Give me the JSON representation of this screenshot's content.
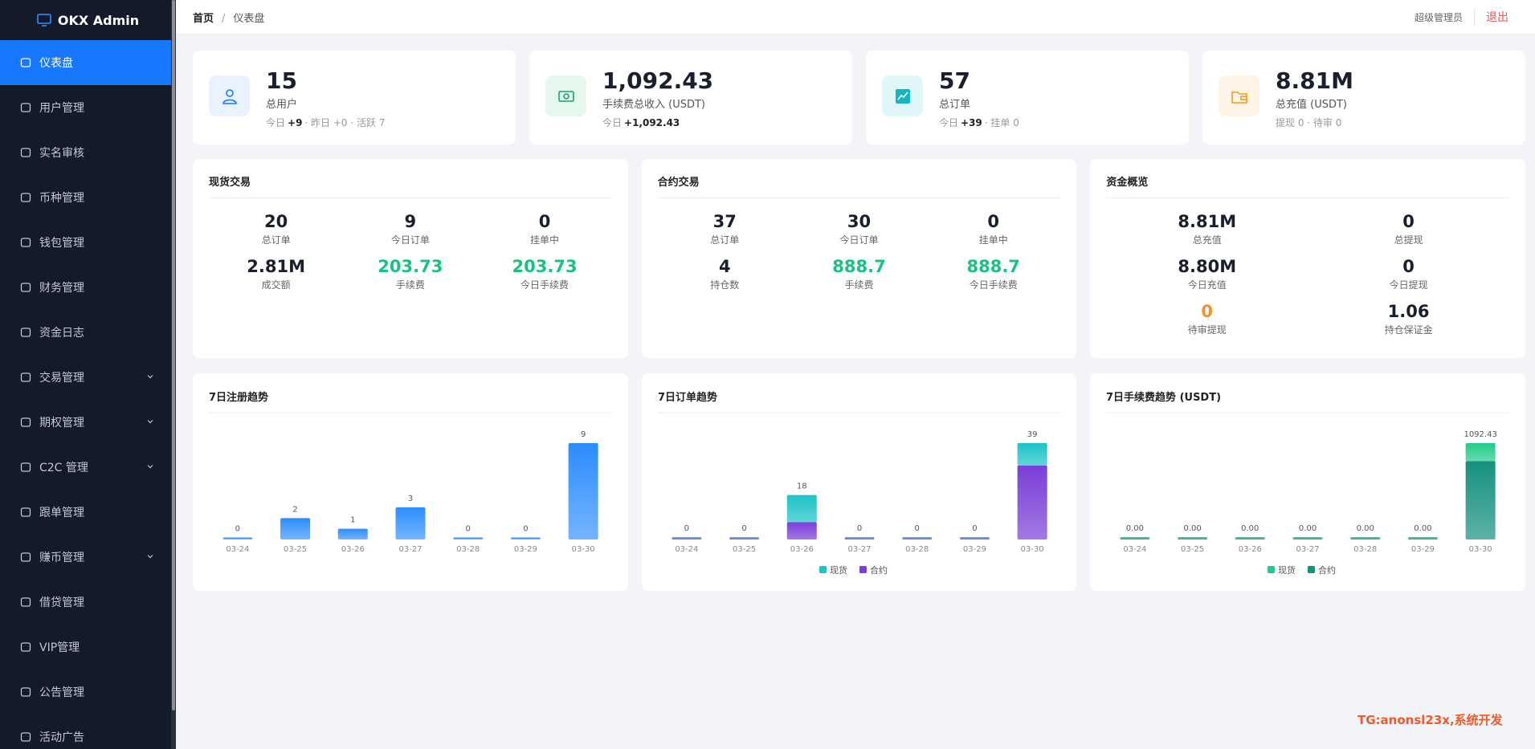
{
  "sidebar": {
    "brand": "OKX Admin",
    "menu": [
      {
        "label": "仪表盘",
        "active": true
      },
      {
        "label": "用户管理"
      },
      {
        "label": "实名审核"
      },
      {
        "label": "币种管理"
      },
      {
        "label": "钱包管理"
      },
      {
        "label": "财务管理"
      },
      {
        "label": "资金日志"
      },
      {
        "label": "交易管理",
        "expandable": true
      },
      {
        "label": "期权管理",
        "expandable": true
      },
      {
        "label": "C2C 管理",
        "expandable": true
      },
      {
        "label": "跟单管理"
      },
      {
        "label": "赚币管理",
        "expandable": true
      },
      {
        "label": "借贷管理"
      },
      {
        "label": "VIP管理"
      },
      {
        "label": "公告管理"
      },
      {
        "label": "活动广告"
      }
    ]
  },
  "header": {
    "breadcrumb": [
      "首页",
      "仪表盘"
    ],
    "separator": "/",
    "user": "超级管理员",
    "logout": "退出"
  },
  "stats": [
    {
      "value": "15",
      "label": "总用户",
      "sub": [
        {
          "text": "今日"
        },
        {
          "text": "+9",
          "bold": true
        },
        {
          "text": "· 昨日 +0 · 活跃 7"
        }
      ]
    },
    {
      "value": "1,092.43",
      "label": "手续费总收入 (USDT)",
      "sub": [
        {
          "text": "今日"
        },
        {
          "text": "+1,092.43",
          "bold": true
        }
      ]
    },
    {
      "value": "57",
      "label": "总订单",
      "sub": [
        {
          "text": "今日"
        },
        {
          "text": "+39",
          "bold": true
        },
        {
          "text": "· 挂单 0"
        }
      ]
    },
    {
      "value": "8.81M",
      "label": "总充值 (USDT)",
      "sub": [
        {
          "text": "提现 0 · 待审 0"
        }
      ]
    }
  ],
  "panels": [
    {
      "title": "现货交易",
      "columns": 3,
      "items": [
        {
          "value": "20",
          "label": "总订单"
        },
        {
          "value": "9",
          "label": "今日订单"
        },
        {
          "value": "0",
          "label": "挂单中"
        },
        {
          "value": "2.81M",
          "label": "成交额"
        },
        {
          "value": "203.73",
          "label": "手续费",
          "color": "#16c47f"
        },
        {
          "value": "203.73",
          "label": "今日手续费",
          "color": "#16c47f"
        }
      ]
    },
    {
      "title": "合约交易",
      "columns": 3,
      "items": [
        {
          "value": "37",
          "label": "总订单"
        },
        {
          "value": "30",
          "label": "今日订单"
        },
        {
          "value": "0",
          "label": "挂单中"
        },
        {
          "value": "4",
          "label": "持仓数"
        },
        {
          "value": "888.7",
          "label": "手续费",
          "color": "#16c47f"
        },
        {
          "value": "888.7",
          "label": "今日手续费",
          "color": "#16c47f"
        }
      ]
    },
    {
      "title": "资金概览",
      "columns": 2,
      "items": [
        {
          "value": "8.81M",
          "label": "总充值"
        },
        {
          "value": "0",
          "label": "总提现"
        },
        {
          "value": "8.80M",
          "label": "今日充值"
        },
        {
          "value": "0",
          "label": "今日提现"
        },
        {
          "value": "0",
          "label": "待审提现",
          "color": "#f5902a"
        },
        {
          "value": "1.06",
          "label": "持仓保证金"
        }
      ]
    }
  ],
  "chart_data": [
    {
      "type": "bar",
      "title": "7日注册趋势",
      "categories": [
        "03-24",
        "03-25",
        "03-26",
        "03-27",
        "03-28",
        "03-29",
        "03-30"
      ],
      "values": [
        0,
        2,
        1,
        3,
        0,
        0,
        9
      ],
      "color": "#2b8cff"
    },
    {
      "type": "stacked-bar",
      "title": "7日订单趋势",
      "categories": [
        "03-24",
        "03-25",
        "03-26",
        "03-27",
        "03-28",
        "03-29",
        "03-30"
      ],
      "series": [
        {
          "name": "现货",
          "color": "#1cc3c8",
          "values": [
            0,
            0,
            11,
            0,
            0,
            0,
            9
          ]
        },
        {
          "name": "合约",
          "color": "#7a3fd8",
          "values": [
            0,
            0,
            7,
            0,
            0,
            0,
            30
          ]
        }
      ],
      "total_labels": [
        "0",
        "0",
        "18",
        "0",
        "0",
        "0",
        "39"
      ]
    },
    {
      "type": "stacked-bar",
      "title": "7日手续费趋势 (USDT)",
      "categories": [
        "03-24",
        "03-25",
        "03-26",
        "03-27",
        "03-28",
        "03-29",
        "03-30"
      ],
      "series": [
        {
          "name": "现货",
          "color": "#22cc88",
          "values": [
            0,
            0,
            0,
            0,
            0,
            0,
            203.73
          ]
        },
        {
          "name": "合约",
          "color": "#16917f",
          "values": [
            0,
            0,
            0,
            0,
            0,
            0,
            888.7
          ]
        }
      ],
      "total_labels": [
        "0.00",
        "0.00",
        "0.00",
        "0.00",
        "0.00",
        "0.00",
        "1092.43"
      ]
    }
  ],
  "watermark": "TG:anonsl23x,系统开发"
}
